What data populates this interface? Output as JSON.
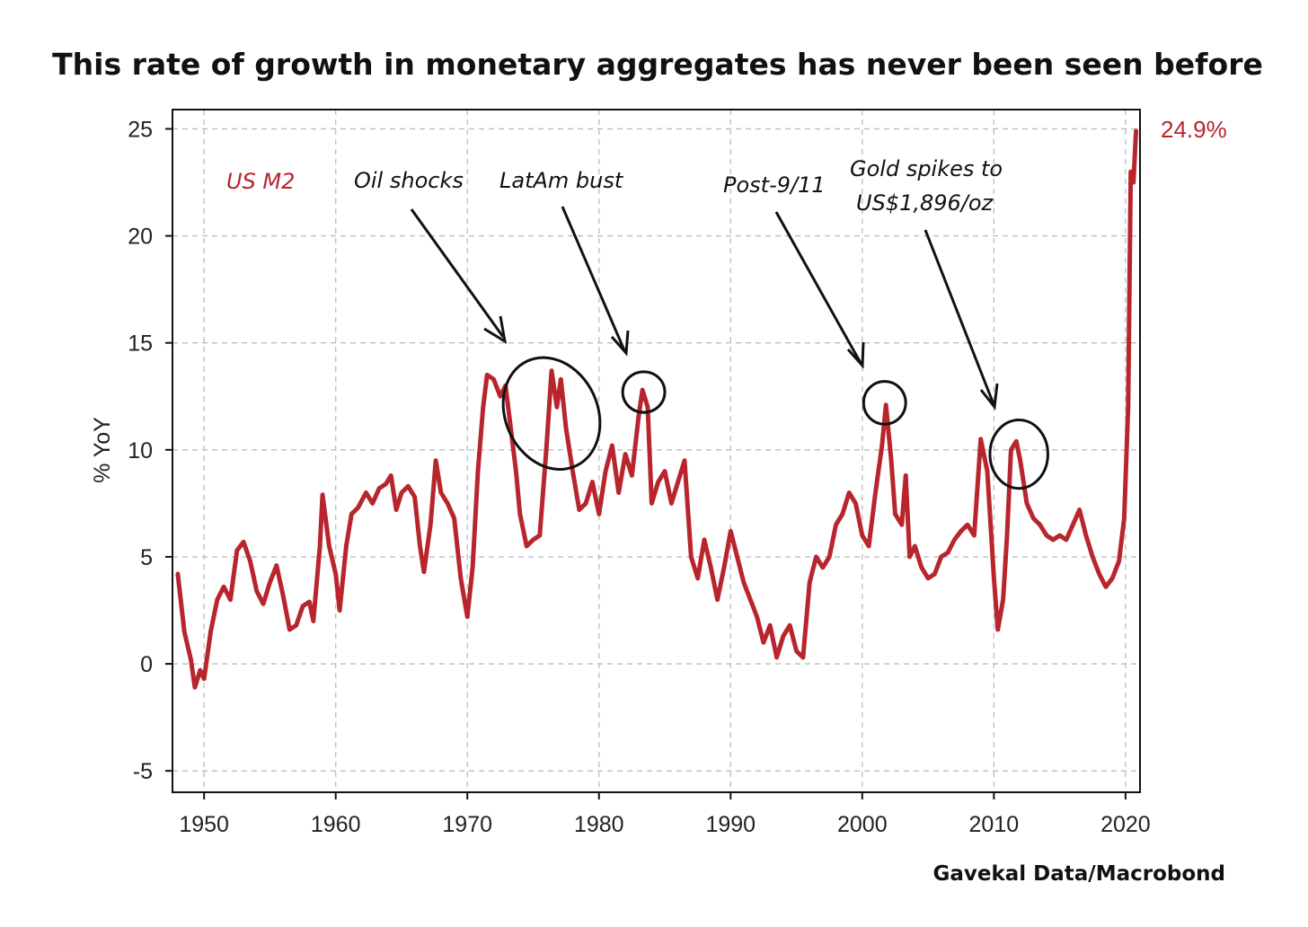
{
  "chart_data": {
    "type": "line",
    "title": "This rate of growth in monetary aggregates has never been seen before",
    "ylabel": "% YoY",
    "xlabel": "",
    "xlim": [
      1947.6,
      2021.1
    ],
    "ylim": [
      -6,
      25.9
    ],
    "x_ticks": [
      1950,
      1960,
      1970,
      1980,
      1990,
      2000,
      2010,
      2020
    ],
    "y_ticks": [
      -5,
      0,
      5,
      10,
      15,
      20,
      25
    ],
    "grid": true,
    "series": [
      {
        "name": "US M2",
        "color": "#b8252d",
        "points": [
          [
            1948.0,
            4.2
          ],
          [
            1948.5,
            1.5
          ],
          [
            1949.0,
            0.2
          ],
          [
            1949.3,
            -1.1
          ],
          [
            1949.7,
            -0.3
          ],
          [
            1950.0,
            -0.7
          ],
          [
            1950.5,
            1.5
          ],
          [
            1951.0,
            3.0
          ],
          [
            1951.5,
            3.6
          ],
          [
            1952.0,
            3.0
          ],
          [
            1952.5,
            5.3
          ],
          [
            1953.0,
            5.7
          ],
          [
            1953.5,
            4.8
          ],
          [
            1954.0,
            3.4
          ],
          [
            1954.5,
            2.8
          ],
          [
            1955.0,
            3.8
          ],
          [
            1955.5,
            4.6
          ],
          [
            1956.0,
            3.2
          ],
          [
            1956.5,
            1.6
          ],
          [
            1957.0,
            1.8
          ],
          [
            1957.5,
            2.7
          ],
          [
            1958.0,
            2.9
          ],
          [
            1958.3,
            2.0
          ],
          [
            1958.8,
            5.5
          ],
          [
            1959.0,
            7.9
          ],
          [
            1959.5,
            5.5
          ],
          [
            1960.0,
            4.2
          ],
          [
            1960.3,
            2.5
          ],
          [
            1960.8,
            5.5
          ],
          [
            1961.2,
            7.0
          ],
          [
            1961.7,
            7.3
          ],
          [
            1962.3,
            8.0
          ],
          [
            1962.8,
            7.5
          ],
          [
            1963.3,
            8.2
          ],
          [
            1963.8,
            8.4
          ],
          [
            1964.2,
            8.8
          ],
          [
            1964.6,
            7.2
          ],
          [
            1965.0,
            8.0
          ],
          [
            1965.5,
            8.3
          ],
          [
            1966.0,
            7.8
          ],
          [
            1966.4,
            5.5
          ],
          [
            1966.7,
            4.3
          ],
          [
            1967.2,
            6.5
          ],
          [
            1967.6,
            9.5
          ],
          [
            1968.0,
            8.0
          ],
          [
            1968.5,
            7.5
          ],
          [
            1969.0,
            6.8
          ],
          [
            1969.5,
            4.0
          ],
          [
            1970.0,
            2.2
          ],
          [
            1970.4,
            4.5
          ],
          [
            1970.8,
            9.0
          ],
          [
            1971.2,
            12.0
          ],
          [
            1971.5,
            13.5
          ],
          [
            1972.0,
            13.3
          ],
          [
            1972.5,
            12.5
          ],
          [
            1972.9,
            13.0
          ],
          [
            1973.3,
            11.0
          ],
          [
            1973.7,
            9.0
          ],
          [
            1974.0,
            7.0
          ],
          [
            1974.5,
            5.5
          ],
          [
            1975.0,
            5.8
          ],
          [
            1975.5,
            6.0
          ],
          [
            1976.0,
            10.0
          ],
          [
            1976.4,
            13.7
          ],
          [
            1976.8,
            12.0
          ],
          [
            1977.1,
            13.3
          ],
          [
            1977.5,
            11.0
          ],
          [
            1978.0,
            9.0
          ],
          [
            1978.5,
            7.2
          ],
          [
            1979.0,
            7.5
          ],
          [
            1979.5,
            8.5
          ],
          [
            1980.0,
            7.0
          ],
          [
            1980.5,
            9.0
          ],
          [
            1981.0,
            10.2
          ],
          [
            1981.5,
            8.0
          ],
          [
            1982.0,
            9.8
          ],
          [
            1982.5,
            8.8
          ],
          [
            1983.0,
            11.5
          ],
          [
            1983.3,
            12.8
          ],
          [
            1983.7,
            12.0
          ],
          [
            1984.0,
            7.5
          ],
          [
            1984.5,
            8.5
          ],
          [
            1985.0,
            9.0
          ],
          [
            1985.5,
            7.5
          ],
          [
            1986.0,
            8.5
          ],
          [
            1986.5,
            9.5
          ],
          [
            1987.0,
            5.0
          ],
          [
            1987.5,
            4.0
          ],
          [
            1988.0,
            5.8
          ],
          [
            1988.5,
            4.5
          ],
          [
            1989.0,
            3.0
          ],
          [
            1989.5,
            4.5
          ],
          [
            1990.0,
            6.2
          ],
          [
            1990.5,
            5.0
          ],
          [
            1991.0,
            3.8
          ],
          [
            1991.5,
            3.0
          ],
          [
            1992.0,
            2.2
          ],
          [
            1992.5,
            1.0
          ],
          [
            1993.0,
            1.8
          ],
          [
            1993.5,
            0.3
          ],
          [
            1994.0,
            1.3
          ],
          [
            1994.5,
            1.8
          ],
          [
            1995.0,
            0.6
          ],
          [
            1995.5,
            0.3
          ],
          [
            1996.0,
            3.8
          ],
          [
            1996.5,
            5.0
          ],
          [
            1997.0,
            4.5
          ],
          [
            1997.5,
            5.0
          ],
          [
            1998.0,
            6.5
          ],
          [
            1998.5,
            7.0
          ],
          [
            1999.0,
            8.0
          ],
          [
            1999.5,
            7.5
          ],
          [
            2000.0,
            6.0
          ],
          [
            2000.5,
            5.5
          ],
          [
            2001.0,
            8.0
          ],
          [
            2001.5,
            10.2
          ],
          [
            2001.8,
            12.1
          ],
          [
            2002.2,
            9.5
          ],
          [
            2002.5,
            7.0
          ],
          [
            2003.0,
            6.5
          ],
          [
            2003.3,
            8.8
          ],
          [
            2003.6,
            5.0
          ],
          [
            2004.0,
            5.5
          ],
          [
            2004.5,
            4.5
          ],
          [
            2005.0,
            4.0
          ],
          [
            2005.5,
            4.2
          ],
          [
            2006.0,
            5.0
          ],
          [
            2006.5,
            5.2
          ],
          [
            2007.0,
            5.8
          ],
          [
            2007.5,
            6.2
          ],
          [
            2008.0,
            6.5
          ],
          [
            2008.5,
            6.0
          ],
          [
            2009.0,
            10.5
          ],
          [
            2009.5,
            9.0
          ],
          [
            2010.0,
            4.0
          ],
          [
            2010.3,
            1.6
          ],
          [
            2010.7,
            3.0
          ],
          [
            2011.0,
            6.0
          ],
          [
            2011.3,
            10.0
          ],
          [
            2011.7,
            10.4
          ],
          [
            2012.0,
            9.5
          ],
          [
            2012.5,
            7.5
          ],
          [
            2013.0,
            6.8
          ],
          [
            2013.5,
            6.5
          ],
          [
            2014.0,
            6.0
          ],
          [
            2014.5,
            5.8
          ],
          [
            2015.0,
            6.0
          ],
          [
            2015.5,
            5.8
          ],
          [
            2016.0,
            6.5
          ],
          [
            2016.5,
            7.2
          ],
          [
            2017.0,
            6.0
          ],
          [
            2017.5,
            5.0
          ],
          [
            2018.0,
            4.2
          ],
          [
            2018.5,
            3.6
          ],
          [
            2019.0,
            4.0
          ],
          [
            2019.5,
            4.8
          ],
          [
            2019.9,
            6.8
          ],
          [
            2020.2,
            12.0
          ],
          [
            2020.4,
            23.0
          ],
          [
            2020.6,
            22.5
          ],
          [
            2020.8,
            24.9
          ]
        ]
      }
    ],
    "circles": [
      {
        "label": "oil-shocks",
        "cx": 1976.4,
        "cy": 11.7,
        "rx": 3.5,
        "ry": 2.7
      },
      {
        "label": "latam-bust",
        "cx": 1983.4,
        "cy": 12.7,
        "rx": 1.6,
        "ry": 0.95
      },
      {
        "label": "post-9/11",
        "cx": 2001.7,
        "cy": 12.2,
        "rx": 1.6,
        "ry": 1.0
      },
      {
        "label": "gold-spike",
        "cx": 2011.9,
        "cy": 9.8,
        "rx": 2.2,
        "ry": 1.6
      }
    ]
  },
  "labels": {
    "series_name": "US M2",
    "last_value": "24.9%",
    "oil_shocks": "Oil shocks",
    "latam_bust": "LatAm bust",
    "post_911": "Post-9/11",
    "gold_line1": "Gold spikes to",
    "gold_line2": "US$1,896/oz",
    "source": "Gavekal Data/Macrobond"
  }
}
